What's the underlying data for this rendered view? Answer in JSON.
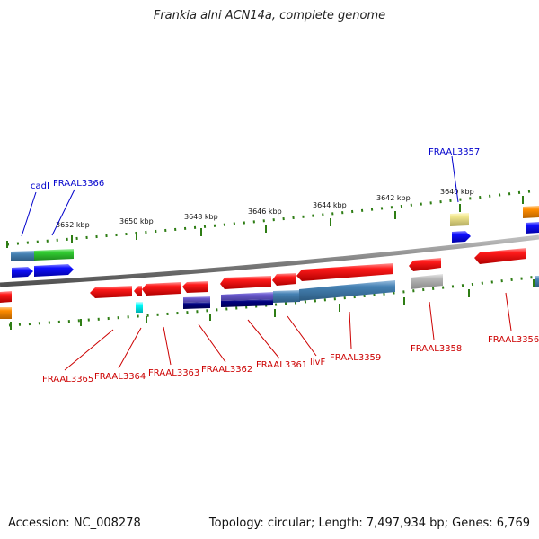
{
  "title": "Frankia alni ACN14a, complete genome",
  "footer": {
    "accession": "Accession: NC_008278",
    "summary": "Topology: circular; Length: 7,497,934 bp; Genes: 6,769"
  },
  "ticks": [
    "3652 kbp",
    "3650 kbp",
    "3648 kbp",
    "3646 kbp",
    "3644 kbp",
    "3642 kbp",
    "3640 kbp"
  ],
  "genes_top": [
    "cadI",
    "FRAAL3366",
    "FRAAL3357"
  ],
  "genes_bottom": [
    "FRAAL3365",
    "FRAAL3364",
    "FRAAL3363",
    "FRAAL3362",
    "FRAAL3361",
    "livF",
    "FRAAL3359",
    "FRAAL3358",
    "FRAAL3356"
  ],
  "colors": {
    "top_label": "#0000cc",
    "bottom_label": "#cc0000",
    "backbone": "#808080",
    "tick": "#2e7d14",
    "cds_forward": "#0000ff",
    "cds_reverse": "#ff0000",
    "gene": "#4682b4",
    "green": "#32cd32",
    "orange": "#ff8c00",
    "gray": "#b8b8b8",
    "cyan": "#00ffff",
    "khaki": "#f0e68c",
    "slate": "#6a5acd",
    "navy": "#00007f"
  }
}
